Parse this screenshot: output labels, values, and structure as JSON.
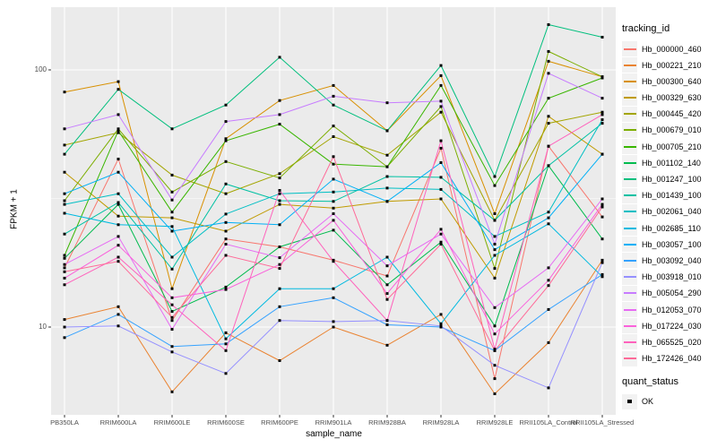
{
  "figure": {
    "ylabel": "FPKM + 1",
    "xlabel": "sample_name",
    "y_tick_labels": [
      "100",
      "10"
    ],
    "legend": {
      "tracking_title": "tracking_id",
      "quant_title": "quant_status",
      "quant_items": [
        {
          "label": "OK",
          "symbol": "black-square"
        }
      ]
    }
  },
  "chart_data": {
    "type": "line",
    "title": "",
    "xlabel": "sample_name",
    "ylabel": "FPKM + 1",
    "y_scale": "log10",
    "ylim": [
      4.6,
      175
    ],
    "yticks": [
      10,
      100
    ],
    "y_minor_ticks": [
      31.6
    ],
    "grid": true,
    "legend_position": "right",
    "point_shape": "filled-square",
    "point_color": "#000000",
    "panel_color": "#ebebeb",
    "categories": [
      "PB350LA",
      "RRIM600LA",
      "RRIM600LE",
      "RRIM600SE",
      "RRIM600PE",
      "RRIM901LA",
      "RRIM928BA",
      "RRIM928LA",
      "RRIM928LE",
      "RRII105LA_Control",
      "RRII105LA_Stressed"
    ],
    "series": [
      {
        "name": "Hb_000000_460",
        "color": "#F8766D",
        "values": [
          17,
          45,
          10.6,
          22,
          20.5,
          18.2,
          15.8,
          49.6,
          6.3,
          50.5,
          26.8
        ]
      },
      {
        "name": "Hb_000221_210",
        "color": "#EA8331",
        "values": [
          10.7,
          12,
          5.6,
          9.5,
          7.4,
          10,
          8.5,
          11.2,
          5.5,
          8.7,
          18.2
        ]
      },
      {
        "name": "Hb_000300_640",
        "color": "#D89000",
        "values": [
          82,
          90,
          14.1,
          54,
          76,
          87,
          58,
          95,
          27.6,
          108,
          94
        ]
      },
      {
        "name": "Hb_000329_630",
        "color": "#C09B00",
        "values": [
          40,
          27,
          26.6,
          23.6,
          30,
          29,
          30.8,
          31.5,
          15.5,
          66,
          47
        ]
      },
      {
        "name": "Hb_000445_420",
        "color": "#A3A500",
        "values": [
          51,
          57,
          39,
          33,
          39.5,
          55,
          46.6,
          68.5,
          26,
          62,
          68.5
        ]
      },
      {
        "name": "Hb_000679_010",
        "color": "#7CAE00",
        "values": [
          31,
          59,
          33.5,
          44,
          38,
          60.5,
          42,
          72,
          16.9,
          118,
          94
        ]
      },
      {
        "name": "Hb_000705_210",
        "color": "#39B600",
        "values": [
          19,
          58,
          28,
          53,
          61.5,
          43,
          42,
          87,
          35.5,
          77.6,
          93
        ]
      },
      {
        "name": "Hb_001102_140",
        "color": "#00BB4E",
        "values": [
          18.5,
          30,
          11.5,
          14.3,
          20.5,
          23.8,
          14.6,
          21.4,
          10.1,
          42.4,
          22
        ]
      },
      {
        "name": "Hb_001247_100",
        "color": "#00BF7D",
        "values": [
          47,
          84,
          59,
          73,
          112,
          73,
          58,
          104,
          38.5,
          150,
          134
        ]
      },
      {
        "name": "Hb_001439_100",
        "color": "#00C1A3",
        "values": [
          23,
          30.5,
          16.8,
          36,
          31,
          30.8,
          38.5,
          38.2,
          26,
          42.4,
          62
        ]
      },
      {
        "name": "Hb_002061_040",
        "color": "#00BFC4",
        "values": [
          30,
          33,
          18.7,
          27.5,
          33,
          33.5,
          34.7,
          34.3,
          22.5,
          28,
          64
        ]
      },
      {
        "name": "Hb_002685_110",
        "color": "#00BAE0",
        "values": [
          27.7,
          25,
          24.6,
          9,
          14.1,
          14.1,
          18.7,
          10.3,
          19,
          25.2,
          15.7
        ]
      },
      {
        "name": "Hb_003057_100",
        "color": "#00B0F6",
        "values": [
          33,
          40,
          23.6,
          25.5,
          25,
          37.6,
          30.8,
          43.6,
          20,
          26.6,
          47
        ]
      },
      {
        "name": "Hb_003092_040",
        "color": "#35A2FF",
        "values": [
          9.1,
          11.2,
          8.4,
          8.6,
          12,
          13,
          10.2,
          10,
          8.1,
          11.7,
          16
        ]
      },
      {
        "name": "Hb_003918_010",
        "color": "#9590FF",
        "values": [
          10,
          10.1,
          8,
          6.6,
          10.6,
          10.5,
          10.6,
          10.1,
          7.1,
          5.8,
          17.8
        ]
      },
      {
        "name": "Hb_005054_290",
        "color": "#C77CFF",
        "values": [
          59,
          67,
          31.2,
          63,
          67,
          79,
          74.5,
          75.6,
          21,
          97,
          77.6
        ]
      },
      {
        "name": "Hb_012053_070",
        "color": "#E76BF3",
        "values": [
          17.5,
          22.5,
          9.8,
          21,
          18.6,
          27.6,
          17.3,
          23,
          11.9,
          17,
          31.5
        ]
      },
      {
        "name": "Hb_017224_030",
        "color": "#FA62DB",
        "values": [
          15.5,
          20.8,
          13,
          14,
          17.5,
          26,
          13.5,
          24,
          9.4,
          15.2,
          30
        ]
      },
      {
        "name": "Hb_065525_020",
        "color": "#FF62BC",
        "values": [
          14.6,
          18.7,
          12.2,
          8.1,
          34,
          18,
          10.6,
          53,
          8.2,
          50.5,
          67
        ]
      },
      {
        "name": "Hb_172426_040",
        "color": "#FF6A98",
        "values": [
          16.4,
          18,
          10.9,
          19,
          16.9,
          46,
          12.8,
          21,
          8.1,
          14.5,
          29.3
        ]
      }
    ]
  }
}
